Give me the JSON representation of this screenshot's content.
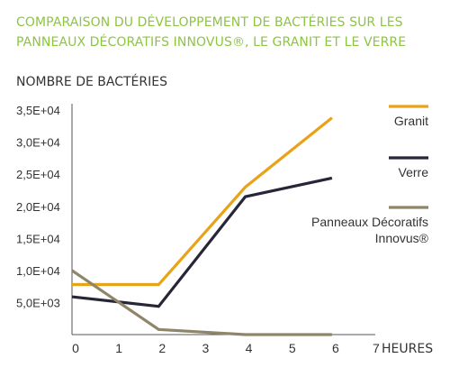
{
  "chart_data": {
    "type": "line",
    "title_lines": [
      "COMPARAISON DU DÉVELOPPEMENT DE BACTÉRIES SUR LES",
      "PANNEAUX DÉCORATIFS INNOVUS®, LE GRANIT ET LE VERRE"
    ],
    "ylabel": "NOMBRE DE BACTÉRIES",
    "xlabel": "HEURES",
    "x_ticks": [
      0,
      1,
      2,
      3,
      4,
      5,
      6,
      7
    ],
    "x_tick_labels": [
      "0",
      "1",
      "2",
      "3",
      "4",
      "5",
      "6",
      "7"
    ],
    "y_ticks": [
      5000,
      10000,
      15000,
      20000,
      25000,
      30000,
      35000
    ],
    "y_tick_labels": [
      "5,0E+03",
      "1,0E+04",
      "1,5E+04",
      "2,0E+04",
      "2,5E+04",
      "3,0E+04",
      "3,5E+04"
    ],
    "xlim": [
      0,
      7
    ],
    "ylim": [
      0,
      36000
    ],
    "grid": false,
    "legend_position": "right",
    "series": [
      {
        "name": "Granit",
        "color": "#e8a319",
        "x": [
          0,
          2,
          4,
          6
        ],
        "y": [
          7800,
          7800,
          23000,
          33800
        ]
      },
      {
        "name": "Verre",
        "color": "#272639",
        "x": [
          0,
          2,
          4,
          6
        ],
        "y": [
          5900,
          4400,
          21500,
          24400
        ]
      },
      {
        "name": "Panneaux Décoratifs Innovus®",
        "legend_lines": [
          "Panneaux Décoratifs",
          "Innovus®"
        ],
        "color": "#8f8569",
        "x": [
          0,
          2,
          4,
          6
        ],
        "y": [
          10000,
          800,
          0,
          0
        ]
      }
    ]
  }
}
